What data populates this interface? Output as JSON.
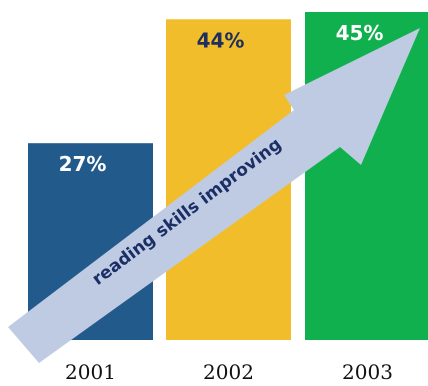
{
  "chart_data": {
    "type": "bar",
    "categories": [
      "2001",
      "2002",
      "2003"
    ],
    "values": [
      27,
      44,
      45
    ],
    "value_labels": [
      "27%",
      "44%",
      "45%"
    ],
    "ylim": [
      0,
      45
    ],
    "grid": false,
    "colors": [
      "#235a8c",
      "#f2bd2a",
      "#10b04e"
    ],
    "label_colors": [
      "#ffffff",
      "#1c2f5e",
      "#ffffff"
    ],
    "annotation": {
      "text": "reading skills improving",
      "arrow_color": "#bfcbe3",
      "text_color": "#1b2f66"
    }
  }
}
